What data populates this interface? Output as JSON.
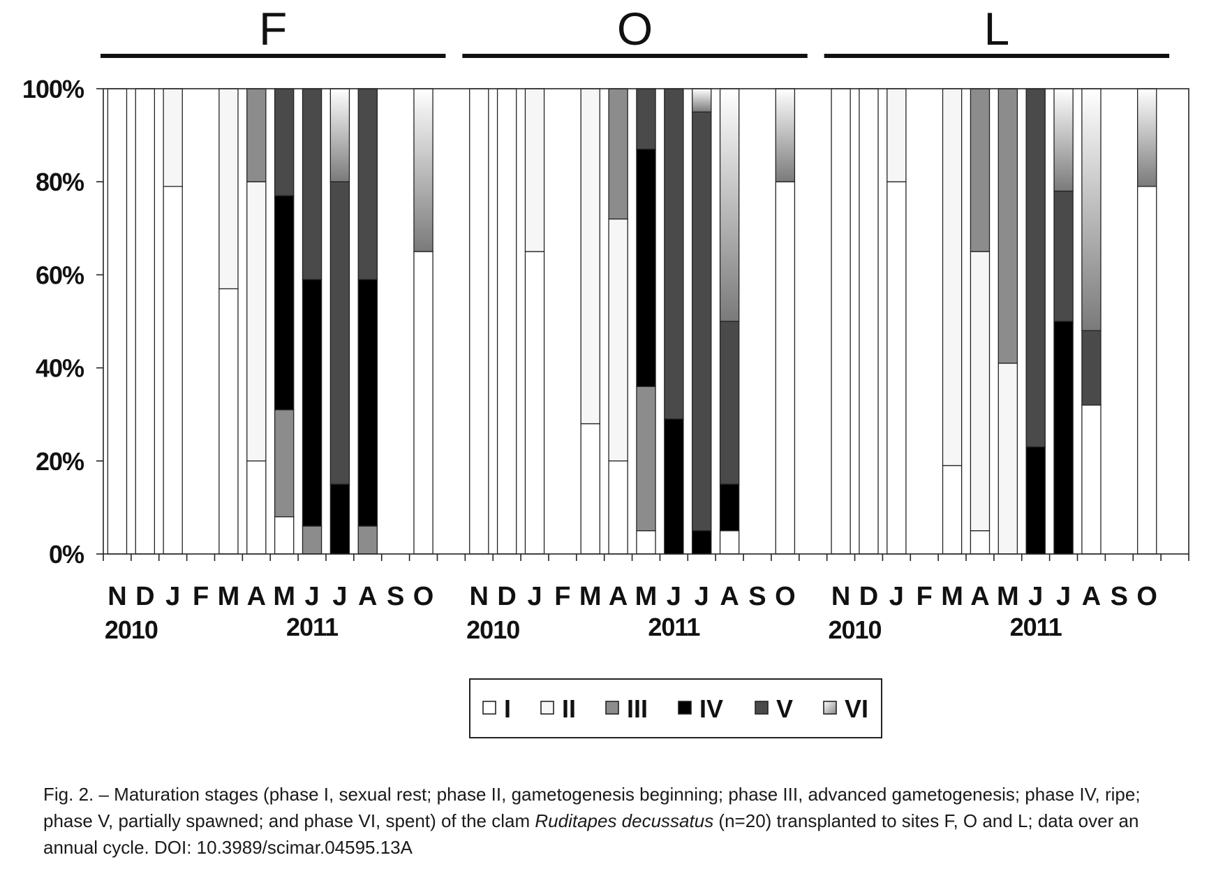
{
  "chart_data": {
    "type": "bar",
    "stacked": true,
    "panels": [
      "F",
      "O",
      "L"
    ],
    "months": [
      "N",
      "D",
      "J",
      "F",
      "M",
      "A",
      "M",
      "J",
      "J",
      "A",
      "S",
      "O"
    ],
    "years": [
      "2010",
      "2011"
    ],
    "y_ticks": [
      "0%",
      "20%",
      "40%",
      "60%",
      "80%",
      "100%"
    ],
    "ylim": [
      0,
      100
    ],
    "legend_location": "bottom-center",
    "stages": [
      {
        "name": "I",
        "color": "#ffffff"
      },
      {
        "name": "II",
        "color": "#f6f6f6"
      },
      {
        "name": "III",
        "color": "#8c8c8c"
      },
      {
        "name": "IV",
        "color": "#000000"
      },
      {
        "name": "V",
        "color": "#4a4a4a"
      },
      {
        "name": "VI",
        "color": "gradient-white-grey"
      }
    ],
    "data": {
      "F": [
        [
          100,
          0,
          0,
          0,
          0,
          0
        ],
        [
          100,
          0,
          0,
          0,
          0,
          0
        ],
        [
          79,
          21,
          0,
          0,
          0,
          0
        ],
        null,
        [
          57,
          43,
          0,
          0,
          0,
          0
        ],
        [
          20,
          60,
          20,
          0,
          0,
          0
        ],
        [
          8,
          0,
          23,
          46,
          23,
          0
        ],
        [
          0,
          0,
          6,
          53,
          41,
          0
        ],
        [
          0,
          0,
          0,
          15,
          65,
          20
        ],
        [
          0,
          0,
          6,
          53,
          41,
          0
        ],
        null,
        [
          65,
          0,
          0,
          0,
          0,
          35
        ]
      ],
      "O": [
        [
          100,
          0,
          0,
          0,
          0,
          0
        ],
        [
          100,
          0,
          0,
          0,
          0,
          0
        ],
        [
          65,
          35,
          0,
          0,
          0,
          0
        ],
        null,
        [
          28,
          72,
          0,
          0,
          0,
          0
        ],
        [
          20,
          52,
          28,
          0,
          0,
          0
        ],
        [
          5,
          0,
          31,
          51,
          13,
          0
        ],
        [
          0,
          0,
          0,
          29,
          71,
          0
        ],
        [
          0,
          0,
          0,
          5,
          90,
          5
        ],
        [
          5,
          0,
          0,
          10,
          35,
          50
        ],
        null,
        [
          80,
          0,
          0,
          0,
          0,
          20
        ]
      ],
      "L": [
        [
          100,
          0,
          0,
          0,
          0,
          0
        ],
        [
          100,
          0,
          0,
          0,
          0,
          0
        ],
        [
          80,
          20,
          0,
          0,
          0,
          0
        ],
        null,
        [
          19,
          81,
          0,
          0,
          0,
          0
        ],
        [
          5,
          60,
          35,
          0,
          0,
          0
        ],
        [
          0,
          41,
          59,
          0,
          0,
          0
        ],
        [
          0,
          0,
          0,
          23,
          77,
          0
        ],
        [
          0,
          0,
          0,
          50,
          28,
          22
        ],
        [
          32,
          0,
          0,
          0,
          16,
          52
        ],
        null,
        [
          79,
          0,
          0,
          0,
          0,
          21
        ]
      ]
    }
  },
  "caption": {
    "prefix": "Fig. 2. – Maturation stages (phase I, sexual rest; phase II, gametogenesis beginning; phase III, advanced gametogenesis; phase IV, ripe; phase V, partially spawned; and phase VI, spent) of the clam ",
    "species": "Ruditapes decussatus",
    "suffix": " (n=20) transplanted to sites F, O and L; data over an annual cycle. DOI: 10.3989/scimar.04595.13A"
  }
}
